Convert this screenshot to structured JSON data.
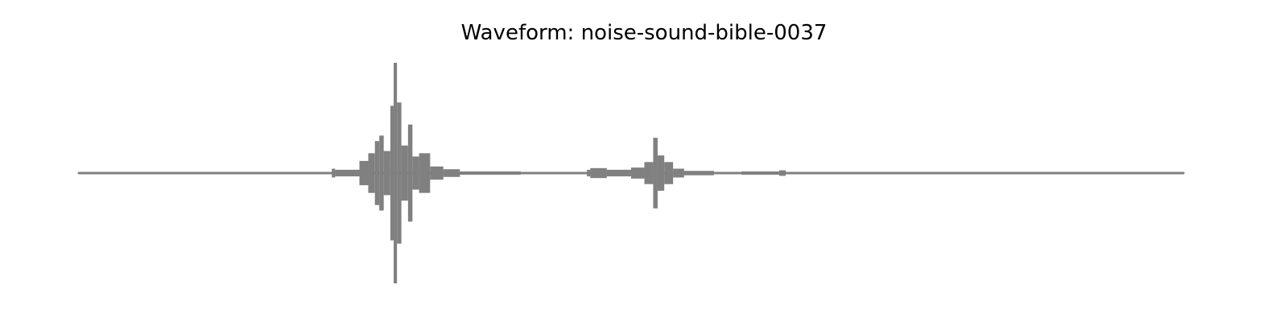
{
  "chart_data": {
    "type": "area",
    "title": "Waveform: noise-sound-bible-0037",
    "xlabel": "",
    "ylabel": "",
    "axes_visible": false,
    "grid": false,
    "legend": "none",
    "normalized_time_range": [
      0,
      1
    ],
    "ylim": [
      -1,
      1
    ],
    "series": [
      {
        "color": "#808080",
        "segments": [
          {
            "t0": 0.0,
            "t1": 0.229,
            "peak": 0.01
          },
          {
            "t0": 0.229,
            "t1": 0.232,
            "peak": 0.04
          },
          {
            "t0": 0.232,
            "t1": 0.254,
            "peak": 0.03
          },
          {
            "t0": 0.254,
            "t1": 0.262,
            "peak": 0.11
          },
          {
            "t0": 0.262,
            "t1": 0.268,
            "peak": 0.18
          },
          {
            "t0": 0.268,
            "t1": 0.272,
            "peak": 0.29
          },
          {
            "t0": 0.272,
            "t1": 0.276,
            "peak": 0.34
          },
          {
            "t0": 0.276,
            "t1": 0.282,
            "peak": 0.2
          },
          {
            "t0": 0.282,
            "t1": 0.285,
            "peak": 0.61
          },
          {
            "t0": 0.285,
            "t1": 0.288,
            "peak": 1.0
          },
          {
            "t0": 0.288,
            "t1": 0.292,
            "peak": 0.64
          },
          {
            "t0": 0.292,
            "t1": 0.298,
            "peak": 0.25
          },
          {
            "t0": 0.298,
            "t1": 0.302,
            "peak": 0.44
          },
          {
            "t0": 0.302,
            "t1": 0.308,
            "peak": 0.15
          },
          {
            "t0": 0.308,
            "t1": 0.318,
            "peak": 0.18
          },
          {
            "t0": 0.318,
            "t1": 0.33,
            "peak": 0.06
          },
          {
            "t0": 0.33,
            "t1": 0.345,
            "peak": 0.035
          },
          {
            "t0": 0.345,
            "t1": 0.4,
            "peak": 0.015
          },
          {
            "t0": 0.4,
            "t1": 0.46,
            "peak": 0.01
          },
          {
            "t0": 0.46,
            "t1": 0.463,
            "peak": 0.03
          },
          {
            "t0": 0.463,
            "t1": 0.478,
            "peak": 0.045
          },
          {
            "t0": 0.478,
            "t1": 0.5,
            "peak": 0.03
          },
          {
            "t0": 0.5,
            "t1": 0.512,
            "peak": 0.05
          },
          {
            "t0": 0.512,
            "t1": 0.52,
            "peak": 0.1
          },
          {
            "t0": 0.52,
            "t1": 0.524,
            "peak": 0.32
          },
          {
            "t0": 0.524,
            "t1": 0.53,
            "peak": 0.16
          },
          {
            "t0": 0.53,
            "t1": 0.538,
            "peak": 0.1
          },
          {
            "t0": 0.538,
            "t1": 0.548,
            "peak": 0.04
          },
          {
            "t0": 0.548,
            "t1": 0.575,
            "peak": 0.02
          },
          {
            "t0": 0.575,
            "t1": 0.6,
            "peak": 0.01
          },
          {
            "t0": 0.6,
            "t1": 0.634,
            "peak": 0.015
          },
          {
            "t0": 0.634,
            "t1": 0.64,
            "peak": 0.025
          },
          {
            "t0": 0.64,
            "t1": 1.0,
            "peak": 0.01
          }
        ]
      }
    ]
  }
}
